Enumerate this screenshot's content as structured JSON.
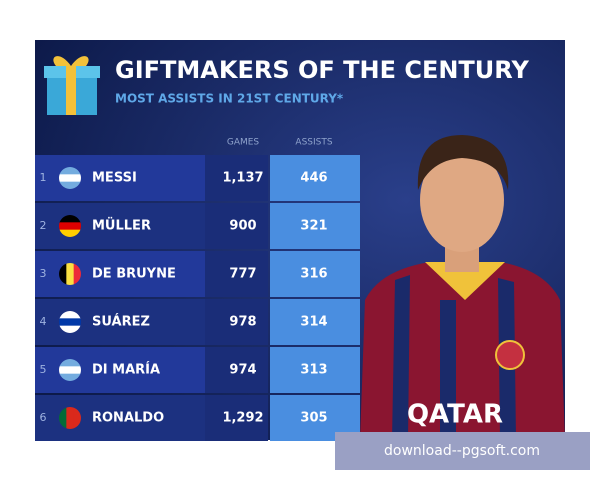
{
  "header": {
    "title": "GIFTMAKERS OF THE CENTURY",
    "subtitle": "MOST ASSISTS IN 21ST CENTURY*"
  },
  "table": {
    "columns": [
      "GAMES",
      "ASSISTS"
    ],
    "rows": [
      [
        "1",
        "MESSI",
        "1,137",
        "446"
      ],
      [
        "2",
        "MÜLLER",
        "900",
        "321"
      ],
      [
        "3",
        "DE BRUYNE",
        "777",
        "316"
      ],
      [
        "4",
        "SUÁREZ",
        "978",
        "314"
      ],
      [
        "5",
        "DI MARÍA",
        "974",
        "313"
      ],
      [
        "6",
        "RONALDO",
        "1,292",
        "305"
      ]
    ]
  },
  "photo": {
    "shirt_text": "QATAR"
  },
  "watermark": "download--pgsoft.com"
}
